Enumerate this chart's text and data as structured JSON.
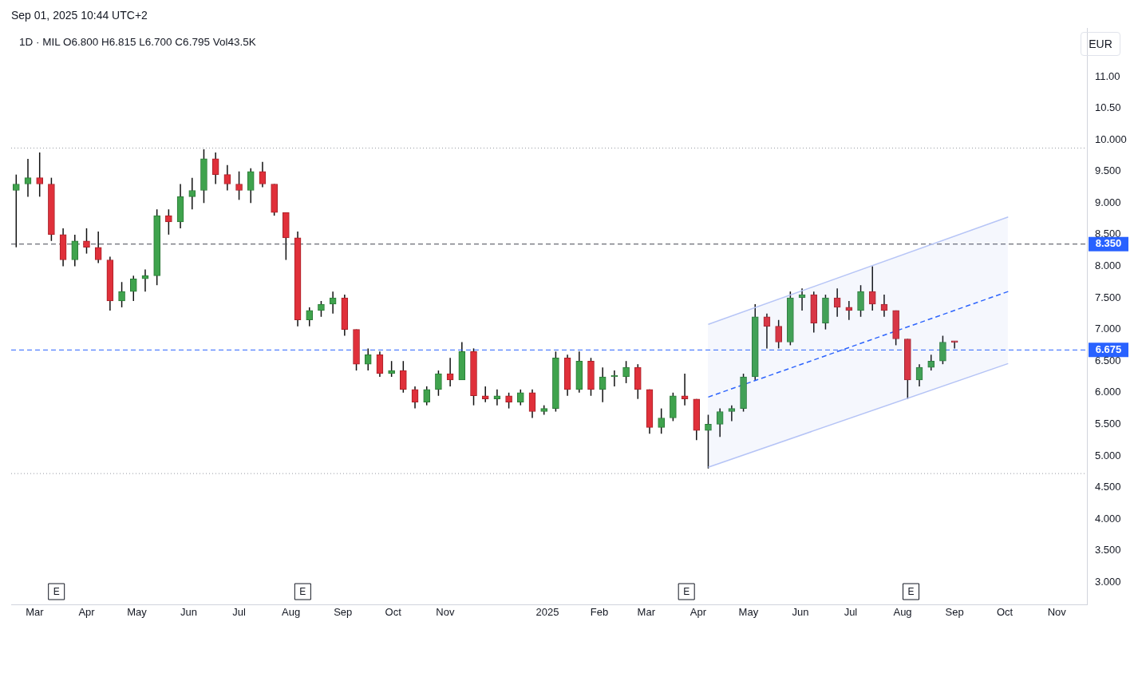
{
  "chart_data": {
    "type": "candlestick",
    "title": "1D · MIL  O6.800  H6.815  L6.700  C6.795  Vol43.5K",
    "x": [
      "2024-02-19",
      "2024-02-26",
      "2024-03-04",
      "2024-03-11",
      "2024-03-18",
      "2024-03-25",
      "2024-04-01",
      "2024-04-08",
      "2024-04-15",
      "2024-04-22",
      "2024-04-29",
      "2024-05-06",
      "2024-05-13",
      "2024-05-20",
      "2024-05-27",
      "2024-06-03",
      "2024-06-10",
      "2024-06-17",
      "2024-06-24",
      "2024-07-01",
      "2024-07-08",
      "2024-07-15",
      "2024-07-22",
      "2024-07-29",
      "2024-08-05",
      "2024-08-12",
      "2024-08-19",
      "2024-08-26",
      "2024-09-02",
      "2024-09-09",
      "2024-09-16",
      "2024-09-23",
      "2024-09-30",
      "2024-10-07",
      "2024-10-14",
      "2024-10-21",
      "2024-10-28",
      "2024-11-04",
      "2024-11-11",
      "2024-11-18",
      "2024-11-25",
      "2024-12-02",
      "2024-12-09",
      "2024-12-16",
      "2024-12-23",
      "2024-12-30",
      "2025-01-06",
      "2025-01-13",
      "2025-01-20",
      "2025-01-27",
      "2025-02-03",
      "2025-02-10",
      "2025-02-17",
      "2025-02-24",
      "2025-03-03",
      "2025-03-10",
      "2025-03-17",
      "2025-03-24",
      "2025-03-31",
      "2025-04-07",
      "2025-04-14",
      "2025-04-21",
      "2025-04-28",
      "2025-05-05",
      "2025-05-12",
      "2025-05-19",
      "2025-05-26",
      "2025-06-02",
      "2025-06-09",
      "2025-06-16",
      "2025-06-23",
      "2025-06-30",
      "2025-07-07",
      "2025-07-14",
      "2025-07-21",
      "2025-07-28",
      "2025-08-04",
      "2025-08-11",
      "2025-08-18",
      "2025-08-25",
      "2025-09-01"
    ],
    "ohlc": [
      [
        9.2,
        9.45,
        8.3,
        9.3
      ],
      [
        9.3,
        9.7,
        9.1,
        9.4
      ],
      [
        9.4,
        9.8,
        9.1,
        9.3
      ],
      [
        9.3,
        9.4,
        8.4,
        8.5
      ],
      [
        8.5,
        8.6,
        8.0,
        8.1
      ],
      [
        8.1,
        8.5,
        8.0,
        8.4
      ],
      [
        8.4,
        8.6,
        8.2,
        8.3
      ],
      [
        8.3,
        8.55,
        8.05,
        8.1
      ],
      [
        8.1,
        8.15,
        7.3,
        7.45
      ],
      [
        7.45,
        7.75,
        7.35,
        7.6
      ],
      [
        7.6,
        7.85,
        7.45,
        7.8
      ],
      [
        7.8,
        7.95,
        7.6,
        7.85
      ],
      [
        7.85,
        8.9,
        7.7,
        8.8
      ],
      [
        8.8,
        8.9,
        8.5,
        8.7
      ],
      [
        8.7,
        9.3,
        8.6,
        9.1
      ],
      [
        9.1,
        9.4,
        8.9,
        9.2
      ],
      [
        9.2,
        9.85,
        9.0,
        9.7
      ],
      [
        9.7,
        9.8,
        9.3,
        9.45
      ],
      [
        9.45,
        9.6,
        9.2,
        9.3
      ],
      [
        9.3,
        9.5,
        9.05,
        9.2
      ],
      [
        9.2,
        9.55,
        9.0,
        9.5
      ],
      [
        9.5,
        9.65,
        9.25,
        9.3
      ],
      [
        9.3,
        9.3,
        8.8,
        8.85
      ],
      [
        8.85,
        8.85,
        8.1,
        8.45
      ],
      [
        8.45,
        8.55,
        7.05,
        7.15
      ],
      [
        7.15,
        7.35,
        7.05,
        7.3
      ],
      [
        7.3,
        7.45,
        7.2,
        7.4
      ],
      [
        7.4,
        7.6,
        7.25,
        7.5
      ],
      [
        7.5,
        7.55,
        6.9,
        7.0
      ],
      [
        7.0,
        7.0,
        6.35,
        6.45
      ],
      [
        6.45,
        6.7,
        6.35,
        6.6
      ],
      [
        6.6,
        6.65,
        6.25,
        6.3
      ],
      [
        6.3,
        6.5,
        6.25,
        6.35
      ],
      [
        6.35,
        6.5,
        6.0,
        6.05
      ],
      [
        6.05,
        6.1,
        5.75,
        5.85
      ],
      [
        5.85,
        6.1,
        5.8,
        6.05
      ],
      [
        6.05,
        6.35,
        5.95,
        6.3
      ],
      [
        6.3,
        6.55,
        6.1,
        6.2
      ],
      [
        6.2,
        6.8,
        6.2,
        6.65
      ],
      [
        6.65,
        6.7,
        5.8,
        5.95
      ],
      [
        5.95,
        6.1,
        5.85,
        5.9
      ],
      [
        5.9,
        6.05,
        5.8,
        5.95
      ],
      [
        5.95,
        6.0,
        5.75,
        5.85
      ],
      [
        5.85,
        6.05,
        5.8,
        6.0
      ],
      [
        6.0,
        6.05,
        5.6,
        5.7
      ],
      [
        5.7,
        5.8,
        5.65,
        5.75
      ],
      [
        5.75,
        6.65,
        5.7,
        6.55
      ],
      [
        6.55,
        6.6,
        5.95,
        6.05
      ],
      [
        6.05,
        6.65,
        6.0,
        6.5
      ],
      [
        6.5,
        6.55,
        5.95,
        6.05
      ],
      [
        6.05,
        6.4,
        5.85,
        6.25
      ],
      [
        6.25,
        6.35,
        6.1,
        6.25
      ],
      [
        6.25,
        6.5,
        6.15,
        6.4
      ],
      [
        6.4,
        6.45,
        5.9,
        6.05
      ],
      [
        6.05,
        6.05,
        5.35,
        5.45
      ],
      [
        5.45,
        5.75,
        5.35,
        5.6
      ],
      [
        5.6,
        6.0,
        5.55,
        5.95
      ],
      [
        5.95,
        6.3,
        5.8,
        5.9
      ],
      [
        5.9,
        5.9,
        5.25,
        5.4
      ],
      [
        5.4,
        5.65,
        4.8,
        5.5
      ],
      [
        5.5,
        5.75,
        5.3,
        5.7
      ],
      [
        5.7,
        5.8,
        5.55,
        5.75
      ],
      [
        5.75,
        6.3,
        5.7,
        6.25
      ],
      [
        6.25,
        7.4,
        6.2,
        7.2
      ],
      [
        7.2,
        7.25,
        6.7,
        7.05
      ],
      [
        7.05,
        7.15,
        6.7,
        6.8
      ],
      [
        6.8,
        7.6,
        6.75,
        7.5
      ],
      [
        7.5,
        7.65,
        7.3,
        7.55
      ],
      [
        7.55,
        7.6,
        6.95,
        7.1
      ],
      [
        7.1,
        7.55,
        7.0,
        7.5
      ],
      [
        7.5,
        7.65,
        7.2,
        7.35
      ],
      [
        7.35,
        7.45,
        7.15,
        7.3
      ],
      [
        7.3,
        7.7,
        7.2,
        7.6
      ],
      [
        7.6,
        8.0,
        7.3,
        7.4
      ],
      [
        7.4,
        7.55,
        7.2,
        7.3
      ],
      [
        7.3,
        7.3,
        6.75,
        6.85
      ],
      [
        6.85,
        6.85,
        5.9,
        6.2
      ],
      [
        6.2,
        6.45,
        6.1,
        6.4
      ],
      [
        6.4,
        6.6,
        6.35,
        6.5
      ],
      [
        6.5,
        6.9,
        6.45,
        6.8
      ],
      [
        6.8,
        6.815,
        6.7,
        6.795
      ]
    ],
    "series": [
      {
        "type": "line",
        "color": "#b9c7f7",
        "x": [
          "2025-04-07",
          "2025-10-03"
        ],
        "values": [
          7.08,
          8.78
        ],
        "line_style": "solid"
      },
      {
        "type": "line",
        "color": "#2962ff",
        "x": [
          "2025-04-07",
          "2025-10-03"
        ],
        "values": [
          5.93,
          7.6
        ],
        "line_style": "dashed"
      },
      {
        "type": "line",
        "color": "#b9c7f7",
        "x": [
          "2025-04-07",
          "2025-10-03"
        ],
        "values": [
          4.82,
          6.46
        ],
        "line_style": "solid"
      }
    ],
    "xlim": [
      "2024-02-16",
      "2025-11-19"
    ],
    "xticks": [
      {
        "value": "2024-03-01",
        "label": "Mar"
      },
      {
        "value": "2024-04-01",
        "label": "Apr"
      },
      {
        "value": "2024-05-01",
        "label": "May"
      },
      {
        "value": "2024-06-01",
        "label": "Jun"
      },
      {
        "value": "2024-07-01",
        "label": "Jul"
      },
      {
        "value": "2024-08-01",
        "label": "Aug"
      },
      {
        "value": "2024-09-01",
        "label": "Sep"
      },
      {
        "value": "2024-10-01",
        "label": "Oct"
      },
      {
        "value": "2024-11-01",
        "label": "Nov"
      },
      {
        "value": "2025-01-01",
        "label": "2025"
      },
      {
        "value": "2025-02-01",
        "label": "Feb"
      },
      {
        "value": "2025-03-01",
        "label": "Mar"
      },
      {
        "value": "2025-04-01",
        "label": "Apr"
      },
      {
        "value": "2025-05-01",
        "label": "May"
      },
      {
        "value": "2025-06-01",
        "label": "Jun"
      },
      {
        "value": "2025-07-01",
        "label": "Jul"
      },
      {
        "value": "2025-08-01",
        "label": "Aug"
      },
      {
        "value": "2025-09-01",
        "label": "Sep"
      },
      {
        "value": "2025-10-01",
        "label": "Oct"
      },
      {
        "value": "2025-11-01",
        "label": "Nov"
      }
    ],
    "ylim": [
      2.65,
      11.77
    ],
    "yticks": [
      {
        "value": 3,
        "label": "3.000"
      },
      {
        "value": 3.5,
        "label": "3.500"
      },
      {
        "value": 4,
        "label": "4.000"
      },
      {
        "value": 4.5,
        "label": "4.500"
      },
      {
        "value": 5,
        "label": "5.000"
      },
      {
        "value": 5.5,
        "label": "5.500"
      },
      {
        "value": 6,
        "label": "6.000"
      },
      {
        "value": 6.5,
        "label": "6.500"
      },
      {
        "value": 7,
        "label": "7.000"
      },
      {
        "value": 7.5,
        "label": "7.500"
      },
      {
        "value": 8,
        "label": "8.000"
      },
      {
        "value": 8.5,
        "label": "8.500"
      },
      {
        "value": 9,
        "label": "9.000"
      },
      {
        "value": 9.5,
        "label": "9.500"
      },
      {
        "value": 10,
        "label": "10.000"
      },
      {
        "value": 10.5,
        "label": "10.50"
      },
      {
        "value": 11,
        "label": "11.00"
      }
    ],
    "ref_lines": [
      {
        "axis": "y",
        "value": 9.87,
        "color": "#9598a1",
        "line_style": "dotted"
      },
      {
        "axis": "y",
        "value": 8.35,
        "label": "8.350",
        "color": "#434651",
        "line_style": "dashed"
      },
      {
        "axis": "y",
        "value": 6.675,
        "label": "6.675",
        "color": "#2962ff",
        "line_style": "dashed"
      },
      {
        "axis": "y",
        "value": 4.72,
        "color": "#9598a1",
        "line_style": "dotted"
      }
    ],
    "annotations": [
      "Sep 01, 2025 10:44 UTC+2",
      "EUR",
      {
        "text": "E",
        "x": "2024-03-14"
      },
      {
        "text": "E",
        "x": "2024-08-08"
      },
      {
        "text": "E",
        "x": "2025-03-25"
      },
      {
        "text": "E",
        "x": "2025-08-06"
      }
    ],
    "grid": false,
    "legend": false
  }
}
